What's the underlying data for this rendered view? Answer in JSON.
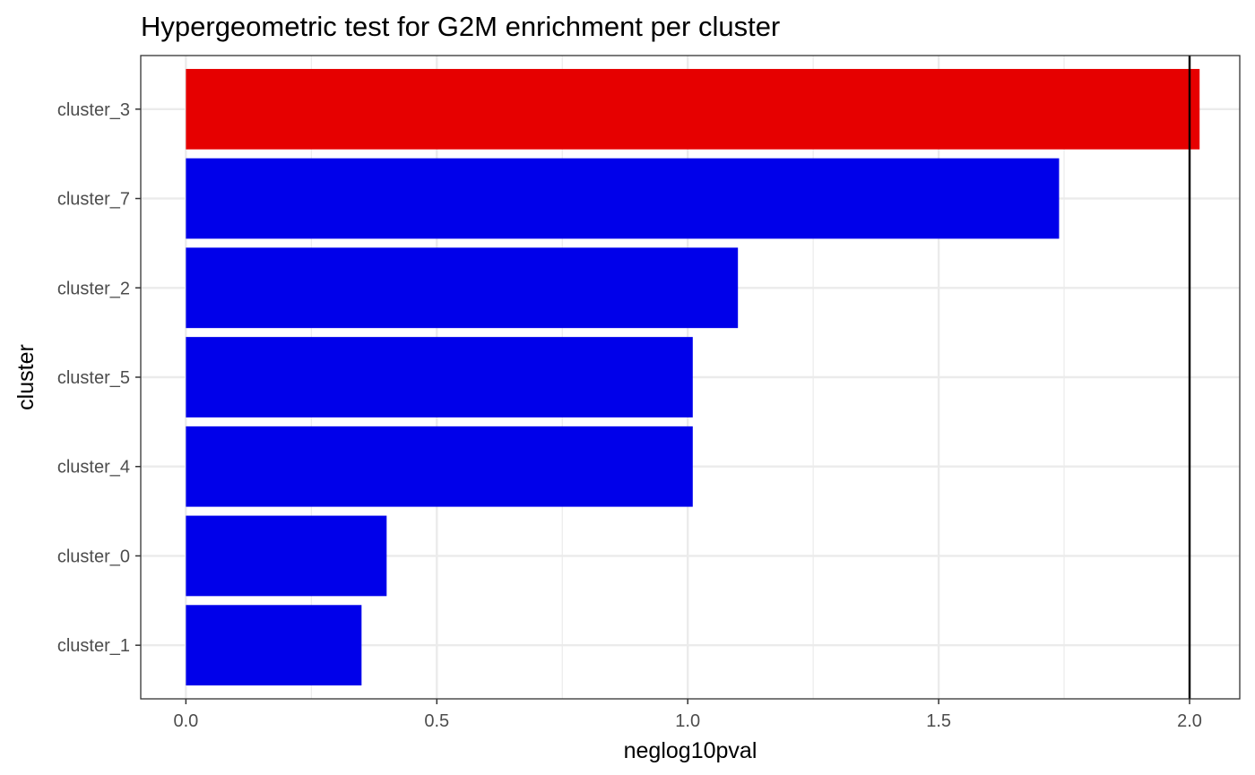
{
  "chart_data": {
    "type": "bar",
    "orientation": "horizontal",
    "title": "Hypergeometric test for G2M enrichment per cluster",
    "xlabel": "neglog10pval",
    "ylabel": "cluster",
    "categories": [
      "cluster_3",
      "cluster_7",
      "cluster_2",
      "cluster_5",
      "cluster_4",
      "cluster_0",
      "cluster_1"
    ],
    "values": [
      2.02,
      1.74,
      1.1,
      1.01,
      1.01,
      0.4,
      0.35
    ],
    "highlight_colors": [
      "#e60000",
      "#0000ea",
      "#0000ea",
      "#0000ea",
      "#0000ea",
      "#0000ea",
      "#0000ea"
    ],
    "xlim": [
      -0.09,
      2.1
    ],
    "xticks": [
      "0.0",
      "0.5",
      "1.0",
      "1.5",
      "2.0"
    ],
    "xtick_values": [
      0,
      0.5,
      1.0,
      1.5,
      2.0
    ],
    "reference_line_x": 2.0,
    "grid": true,
    "legend": "none"
  }
}
